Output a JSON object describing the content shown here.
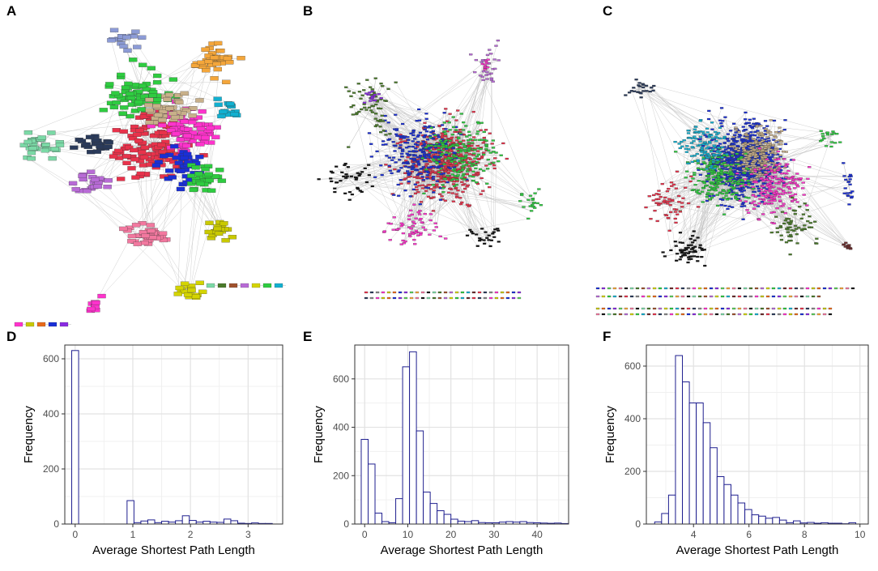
{
  "panels": {
    "A": "A",
    "B": "B",
    "C": "C",
    "D": "D",
    "E": "E",
    "F": "F"
  },
  "palette": [
    "#2ecc40",
    "#e8324b",
    "#ff33cc",
    "#1a2fd6",
    "#f4a63a",
    "#7bd9a6",
    "#b86bd6",
    "#12b0d0",
    "#2a3a5a",
    "#c9c900",
    "#8a2be2",
    "#f2789f",
    "#4a7a2a",
    "#d4d400",
    "#6b2a2a",
    "#888888",
    "#e96a1a",
    "#5ad15a",
    "#111111",
    "#a0522d"
  ],
  "networks": [
    {
      "id": "A",
      "description": "network-graph-a"
    },
    {
      "id": "B",
      "description": "network-graph-b"
    },
    {
      "id": "C",
      "description": "network-graph-c"
    }
  ],
  "chart_data": [
    {
      "type": "bar",
      "panel": "D",
      "title": "",
      "xlabel": "Average Shortest Path Length",
      "ylabel": "Frequency",
      "xlim": [
        -0.18,
        3.6
      ],
      "ylim": [
        0,
        650
      ],
      "xticks": [
        0,
        1,
        2,
        3
      ],
      "yticks": [
        0,
        200,
        400,
        600
      ],
      "bin_width": 0.12,
      "bin_start": -0.06,
      "values": [
        630,
        0,
        0,
        0,
        0,
        0,
        0,
        0,
        85,
        5,
        11,
        15,
        5,
        10,
        7,
        12,
        30,
        13,
        7,
        10,
        7,
        6,
        18,
        12,
        3,
        2,
        4,
        2,
        2,
        0
      ],
      "bar_stroke": "#1f1f8f",
      "grid": true
    },
    {
      "type": "bar",
      "panel": "E",
      "title": "",
      "xlabel": "Average Shortest Path Length",
      "ylabel": "Frequency",
      "xlim": [
        -2.3,
        47.3
      ],
      "ylim": [
        0,
        740
      ],
      "xticks": [
        0,
        10,
        20,
        30,
        40
      ],
      "yticks": [
        0,
        200,
        400,
        600
      ],
      "bin_width": 1.6,
      "bin_start": -0.8,
      "values": [
        350,
        248,
        45,
        10,
        5,
        105,
        650,
        712,
        385,
        132,
        85,
        55,
        40,
        20,
        12,
        10,
        14,
        6,
        5,
        5,
        8,
        10,
        8,
        10,
        6,
        5,
        4,
        3,
        4,
        2
      ],
      "bar_stroke": "#1f1f8f",
      "grid": true
    },
    {
      "type": "bar",
      "panel": "F",
      "title": "",
      "xlabel": "Average Shortest Path Length",
      "ylabel": "Frequency",
      "xlim": [
        2.3,
        10.3
      ],
      "ylim": [
        0,
        680
      ],
      "xticks": [
        4,
        6,
        8,
        10
      ],
      "yticks": [
        0,
        200,
        400,
        600
      ],
      "bin_width": 0.25,
      "bin_start": 2.6,
      "values": [
        8,
        40,
        110,
        640,
        540,
        460,
        460,
        385,
        290,
        180,
        150,
        110,
        80,
        55,
        35,
        30,
        22,
        25,
        15,
        5,
        12,
        4,
        6,
        3,
        5,
        3,
        3,
        1,
        5
      ],
      "bar_stroke": "#1f1f8f",
      "grid": true
    }
  ]
}
